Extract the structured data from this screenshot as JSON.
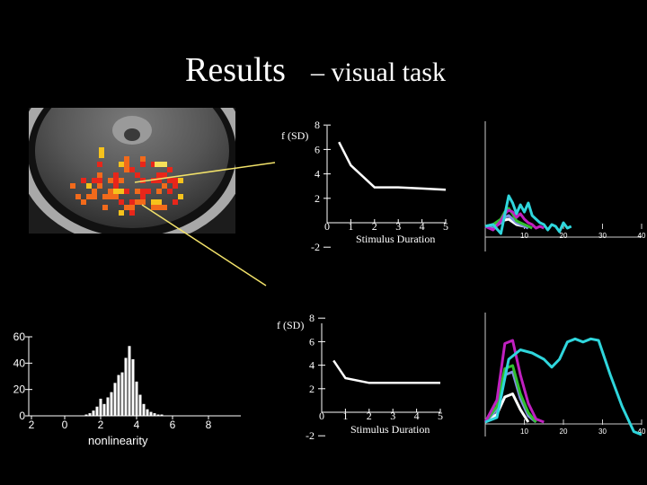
{
  "title": {
    "main": "Results",
    "sub": "– visual task"
  },
  "chart_data": [
    {
      "type": "line",
      "ylabel": "f (SD)",
      "xlabel": "Stimulus Duration",
      "x": [
        0.5,
        1,
        1.5,
        2,
        3,
        4,
        5
      ],
      "series": [
        {
          "values": [
            6.6,
            4.7,
            3.8,
            2.9,
            2.9,
            2.8,
            2.7
          ]
        }
      ],
      "yticks": [
        "8",
        "6",
        "4",
        "2",
        "-2"
      ],
      "xticks": [
        "0",
        "1",
        "2",
        "3",
        "4",
        "5"
      ],
      "ylim": [
        -2,
        8
      ],
      "xlim": [
        0,
        5
      ]
    },
    {
      "type": "line",
      "ylabel": "f (SD)",
      "xlabel": "Stimulus Duration",
      "x": [
        0.5,
        1,
        2,
        3,
        4,
        5
      ],
      "series": [
        {
          "values": [
            4.4,
            2.9,
            2.5,
            2.5,
            2.5,
            2.5
          ]
        }
      ],
      "yticks": [
        "8",
        "6",
        "4",
        "2",
        "-2"
      ],
      "xticks": [
        "0",
        "1",
        "2",
        "3",
        "4",
        "5"
      ],
      "ylim": [
        -2,
        8
      ],
      "xlim": [
        0,
        5
      ]
    },
    {
      "type": "bar",
      "xlabel": "nonlinearity",
      "yticks": [
        "60",
        "40",
        "20",
        "0"
      ],
      "xticks": [
        "2",
        "0",
        "2",
        "4",
        "6",
        "8"
      ],
      "ylim": [
        0,
        60
      ],
      "x": [
        1.2,
        1.4,
        1.6,
        1.8,
        2.0,
        2.2,
        2.4,
        2.6,
        2.8,
        3.0,
        3.2,
        3.4,
        3.6,
        3.8,
        4.0,
        4.2,
        4.4,
        4.6,
        4.8,
        5.0,
        5.2,
        5.4
      ],
      "values": [
        1,
        2,
        4,
        7,
        13,
        9,
        14,
        18,
        25,
        31,
        33,
        44,
        53,
        43,
        26,
        16,
        9,
        5,
        3,
        2,
        1,
        1
      ]
    },
    {
      "type": "line",
      "xticks": [
        "10",
        "20",
        "30",
        "40"
      ],
      "xlim": [
        0,
        40
      ],
      "ylim": [
        -1,
        4
      ],
      "series": [
        {
          "color": "#2fd6dc",
          "x": [
            0,
            2,
            4,
            6,
            7,
            8,
            9,
            10,
            11,
            12,
            13,
            14,
            15,
            16,
            17,
            18,
            19,
            20,
            21,
            22
          ],
          "values": [
            0,
            0.1,
            -0.4,
            1.7,
            1.3,
            0.7,
            1.2,
            0.8,
            1.3,
            0.6,
            0.4,
            0.2,
            0.1,
            -0.2,
            0.1,
            0,
            -0.3,
            0.2,
            -0.1,
            0
          ]
        },
        {
          "color": "#c020c0",
          "x": [
            0,
            2,
            4,
            5,
            6,
            7,
            8,
            9,
            10,
            11,
            12,
            13,
            14,
            15
          ],
          "values": [
            0,
            -0.2,
            0.3,
            0.7,
            0.9,
            0.8,
            0.5,
            0.7,
            0.4,
            0.2,
            0.1,
            -0.1,
            0,
            -0.1
          ]
        },
        {
          "color": "#30c030",
          "x": [
            0,
            2,
            4,
            5,
            6,
            7,
            8,
            9,
            10,
            11,
            12
          ],
          "values": [
            0,
            0.1,
            0.4,
            0.8,
            1.0,
            0.7,
            0.3,
            0.2,
            0.1,
            0,
            -0.1
          ]
        },
        {
          "color": "#8090e0",
          "x": [
            0,
            2,
            4,
            5,
            6,
            7,
            8,
            9,
            10,
            11
          ],
          "values": [
            0,
            -0.1,
            0.2,
            0.5,
            0.6,
            0.4,
            0.2,
            0.1,
            0,
            -0.1
          ]
        },
        {
          "color": "#ffffff",
          "x": [
            0,
            2,
            4,
            6,
            8,
            10
          ],
          "values": [
            0,
            0.1,
            0.3,
            0.4,
            0.1,
            0
          ]
        }
      ]
    },
    {
      "type": "line",
      "xticks": [
        "10",
        "20",
        "30",
        "40"
      ],
      "xlim": [
        0,
        40
      ],
      "ylim": [
        -1,
        7
      ],
      "series": [
        {
          "color": "#2fd6dc",
          "x": [
            0,
            3,
            6,
            9,
            12,
            15,
            17,
            19,
            21,
            23,
            25,
            27,
            29,
            32,
            35,
            38,
            40
          ],
          "values": [
            0,
            0.3,
            4.0,
            4.6,
            4.4,
            4.0,
            3.5,
            4.0,
            5.1,
            5.3,
            5.1,
            5.3,
            5.2,
            3.0,
            1.0,
            -0.6,
            -0.8
          ]
        },
        {
          "color": "#c020c0",
          "x": [
            0,
            3,
            5,
            7,
            9,
            11,
            13,
            15
          ],
          "values": [
            0,
            1.4,
            5.0,
            5.2,
            3.0,
            1.2,
            0.2,
            0
          ]
        },
        {
          "color": "#30c030",
          "x": [
            0,
            3,
            5,
            7,
            9,
            11,
            13
          ],
          "values": [
            0,
            1.0,
            3.4,
            3.6,
            1.8,
            0.6,
            0
          ]
        },
        {
          "color": "#8090e0",
          "x": [
            0,
            3,
            5,
            7,
            9,
            11,
            13
          ],
          "values": [
            0,
            0.8,
            3.0,
            3.2,
            1.5,
            0.4,
            0
          ]
        },
        {
          "color": "#ffffff",
          "x": [
            0,
            3,
            5,
            7,
            9,
            11
          ],
          "values": [
            0,
            0.5,
            1.6,
            1.8,
            0.8,
            0
          ]
        }
      ]
    }
  ]
}
